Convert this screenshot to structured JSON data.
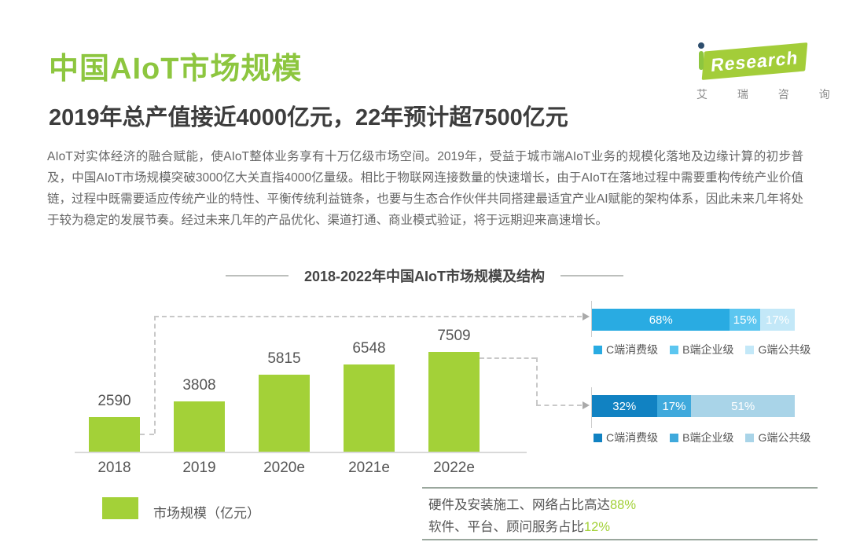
{
  "header": {
    "title": "中国AIoT市场规模",
    "subtitle": "2019年总产值接近4000亿元，22年预计超7500亿元",
    "logo": {
      "brand": "Research",
      "brand_cn": "艾 瑞 咨 询"
    }
  },
  "intro": {
    "text": "AIoT对实体经济的融合赋能，使AIoT整体业务享有十万亿级市场空间。2019年，受益于城市端AIoT业务的规模化落地及边缘计算的初步普及，中国AIoT市场规模突破3000亿大关直指4000亿量级。相比于物联网连接数量的快速增长，由于AIoT在落地过程中需要重构传统产业价值链，过程中既需要适应传统产业的特性、平衡传统利益链条，也要与生态合作伙伴共同搭建最适宜产业AI赋能的架构体系，因此未来几年将处于较为稳定的发展节奏。经过未来几年的产品优化、渠道打通、商业模式验证，将于远期迎来高速增长。"
  },
  "chart_data": [
    {
      "type": "bar",
      "title": "2018-2022年中国AIoT市场规模及结构",
      "categories": [
        "2018",
        "2019",
        "2020e",
        "2021e",
        "2022e"
      ],
      "values": [
        2590,
        3808,
        5815,
        6548,
        7509
      ],
      "series_name": "市场规模（亿元）",
      "ylabel": "",
      "xlabel": "",
      "ylim": [
        0,
        8000
      ],
      "grid": false,
      "value_labels": true,
      "bar_color": "#a3d138"
    },
    {
      "type": "stacked-bar-horizontal",
      "legend_position": "below-each-bar",
      "rows": [
        {
          "linked_category": "2018",
          "segments": [
            {
              "label": "C端消费级",
              "value": 68,
              "unit": "%",
              "color": "#29abe2"
            },
            {
              "label": "B端企业级",
              "value": 15,
              "unit": "%",
              "color": "#5cc6f0"
            },
            {
              "label": "G端公共级",
              "value": 17,
              "unit": "%",
              "color": "#c3e8f8"
            }
          ]
        },
        {
          "linked_category": "2022e",
          "segments": [
            {
              "label": "C端消费级",
              "value": 32,
              "unit": "%",
              "color": "#1182c2"
            },
            {
              "label": "B端企业级",
              "value": 17,
              "unit": "%",
              "color": "#3fa9dc"
            },
            {
              "label": "G端公共级",
              "value": 51,
              "unit": "%",
              "color": "#a9d4e8"
            }
          ]
        }
      ]
    }
  ],
  "footer": {
    "legend": {
      "swatch_color": "#a3d138",
      "label": "市场规模（亿元）"
    },
    "notes": [
      {
        "text": "硬件及安装施工、网络占比高达",
        "highlight": "88%"
      },
      {
        "text": "软件、平台、顾问服务占比",
        "highlight": "12%"
      }
    ]
  }
}
